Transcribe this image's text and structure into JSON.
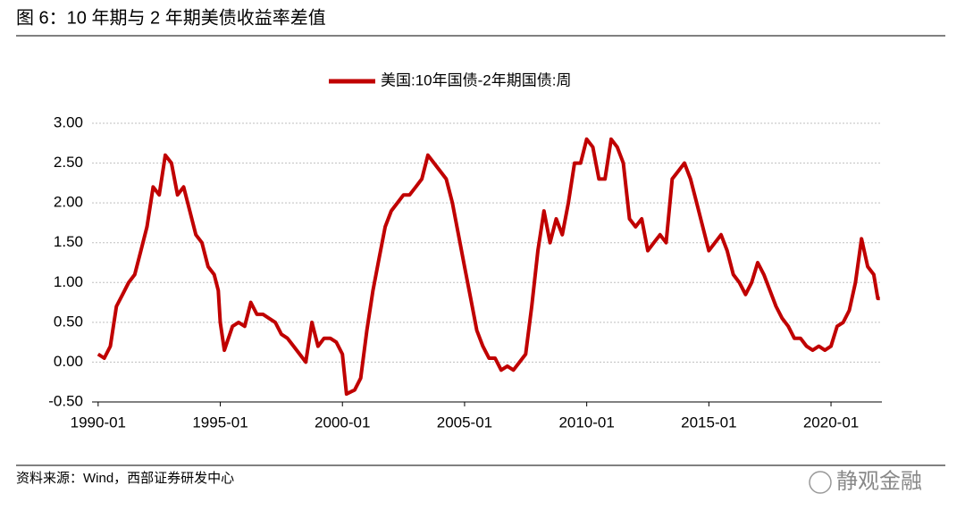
{
  "chart_data": {
    "type": "line",
    "title": "图 6：10 年期与 2 年期美债收益率差值",
    "source": "资料来源：Wind，西部证券研发中心",
    "watermark": "静观金融",
    "legend": "top",
    "grid": true,
    "x": [
      "1990-01",
      "1990-04",
      "1990-07",
      "1990-10",
      "1991-01",
      "1991-04",
      "1991-07",
      "1991-10",
      "1992-01",
      "1992-04",
      "1992-07",
      "1992-10",
      "1993-01",
      "1993-04",
      "1993-07",
      "1993-10",
      "1994-01",
      "1994-04",
      "1994-07",
      "1994-10",
      "1994-12",
      "1995-01",
      "1995-03",
      "1995-07",
      "1995-10",
      "1996-01",
      "1996-04",
      "1996-07",
      "1996-10",
      "1997-01",
      "1997-04",
      "1997-07",
      "1997-10",
      "1998-01",
      "1998-04",
      "1998-07",
      "1998-10",
      "1999-01",
      "1999-04",
      "1999-07",
      "1999-10",
      "2000-01",
      "2000-03",
      "2000-07",
      "2000-10",
      "2001-01",
      "2001-04",
      "2001-07",
      "2001-10",
      "2002-01",
      "2002-04",
      "2002-07",
      "2002-10",
      "2003-01",
      "2003-04",
      "2003-07",
      "2003-10",
      "2004-01",
      "2004-04",
      "2004-07",
      "2004-10",
      "2005-01",
      "2005-04",
      "2005-07",
      "2005-10",
      "2006-01",
      "2006-04",
      "2006-07",
      "2006-10",
      "2007-01",
      "2007-04",
      "2007-07",
      "2007-10",
      "2008-01",
      "2008-04",
      "2008-07",
      "2008-10",
      "2009-01",
      "2009-04",
      "2009-07",
      "2009-10",
      "2010-01",
      "2010-04",
      "2010-07",
      "2010-10",
      "2011-01",
      "2011-04",
      "2011-07",
      "2011-10",
      "2012-01",
      "2012-04",
      "2012-07",
      "2012-10",
      "2013-01",
      "2013-04",
      "2013-07",
      "2013-10",
      "2014-01",
      "2014-04",
      "2014-07",
      "2014-10",
      "2015-01",
      "2015-04",
      "2015-07",
      "2015-10",
      "2016-01",
      "2016-04",
      "2016-07",
      "2016-10",
      "2017-01",
      "2017-04",
      "2017-07",
      "2017-10",
      "2018-01",
      "2018-04",
      "2018-07",
      "2018-10",
      "2019-01",
      "2019-04",
      "2019-07",
      "2019-10",
      "2020-01",
      "2020-04",
      "2020-07",
      "2020-10",
      "2021-01",
      "2021-04",
      "2021-07",
      "2021-10",
      "2021-12",
      "2022-01"
    ],
    "series": [
      {
        "name": "美国:10年国债-2年期国债:周",
        "color": "#c00000",
        "values": [
          0.1,
          0.05,
          0.2,
          0.7,
          0.85,
          1.0,
          1.1,
          1.4,
          1.7,
          2.2,
          2.1,
          2.6,
          2.5,
          2.1,
          2.2,
          1.9,
          1.6,
          1.5,
          1.2,
          1.1,
          0.9,
          0.5,
          0.15,
          0.45,
          0.5,
          0.45,
          0.75,
          0.6,
          0.6,
          0.55,
          0.5,
          0.35,
          0.3,
          0.2,
          0.1,
          0.0,
          0.5,
          0.2,
          0.3,
          0.3,
          0.25,
          0.1,
          -0.4,
          -0.35,
          -0.2,
          0.4,
          0.9,
          1.3,
          1.7,
          1.9,
          2.0,
          2.1,
          2.1,
          2.2,
          2.3,
          2.6,
          2.5,
          2.4,
          2.3,
          2.0,
          1.6,
          1.2,
          0.8,
          0.4,
          0.2,
          0.05,
          0.05,
          -0.1,
          -0.05,
          -0.1,
          0.0,
          0.1,
          0.7,
          1.4,
          1.9,
          1.5,
          1.8,
          1.6,
          2.0,
          2.5,
          2.5,
          2.8,
          2.7,
          2.3,
          2.3,
          2.8,
          2.7,
          2.5,
          1.8,
          1.7,
          1.8,
          1.4,
          1.5,
          1.6,
          1.5,
          2.3,
          2.4,
          2.5,
          2.3,
          2.0,
          1.7,
          1.4,
          1.5,
          1.6,
          1.4,
          1.1,
          1.0,
          0.85,
          1.0,
          1.25,
          1.1,
          0.9,
          0.7,
          0.55,
          0.45,
          0.3,
          0.3,
          0.2,
          0.15,
          0.2,
          0.15,
          0.2,
          0.45,
          0.5,
          0.65,
          1.0,
          1.55,
          1.2,
          1.1,
          0.8,
          0.8
        ]
      }
    ],
    "xlim": [
      "1989-10",
      "2022-02"
    ],
    "xticks": [
      "1990-01",
      "1995-01",
      "2000-01",
      "2005-01",
      "2010-01",
      "2015-01",
      "2020-01"
    ],
    "ylim": [
      -0.5,
      3
    ],
    "yticks": [
      {
        "value": -0.5,
        "label": "-0.50"
      },
      {
        "value": 0,
        "label": "0.00"
      },
      {
        "value": 0.5,
        "label": "0.50"
      },
      {
        "value": 1,
        "label": "1.00"
      },
      {
        "value": 1.5,
        "label": "1.50"
      },
      {
        "value": 2,
        "label": "2.00"
      },
      {
        "value": 2.5,
        "label": "2.50"
      },
      {
        "value": 3,
        "label": "3.00"
      }
    ]
  }
}
